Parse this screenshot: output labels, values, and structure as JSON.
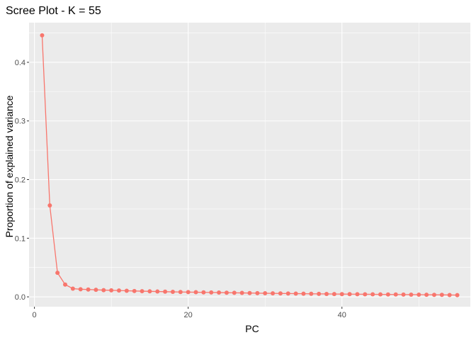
{
  "chart_data": {
    "type": "line",
    "title": "Scree Plot - K = 55",
    "xlabel": "PC",
    "ylabel": "Proportion of explained variance",
    "xlim": [
      -0.7,
      56.7
    ],
    "ylim": [
      -0.0168,
      0.4676
    ],
    "x_ticks": [
      0,
      20,
      40
    ],
    "y_ticks": [
      0.0,
      0.1,
      0.2,
      0.3,
      0.4
    ],
    "x_tick_labels": [
      "0",
      "20",
      "40"
    ],
    "y_tick_labels": [
      "0.0",
      "0.1",
      "0.2",
      "0.3",
      "0.4"
    ],
    "grid": true,
    "legend": "none",
    "series": [
      {
        "color": "#F8766D",
        "x": [
          1,
          2,
          3,
          4,
          5,
          6,
          7,
          8,
          9,
          10,
          11,
          12,
          13,
          14,
          15,
          16,
          17,
          18,
          19,
          20,
          21,
          22,
          23,
          24,
          25,
          26,
          27,
          28,
          29,
          30,
          31,
          32,
          33,
          34,
          35,
          36,
          37,
          38,
          39,
          40,
          41,
          42,
          43,
          44,
          45,
          46,
          47,
          48,
          49,
          50,
          51,
          52,
          53,
          54,
          55
        ],
        "values": [
          0.446,
          0.156,
          0.041,
          0.021,
          0.014,
          0.013,
          0.0125,
          0.012,
          0.0115,
          0.0112,
          0.0108,
          0.0104,
          0.01,
          0.0097,
          0.0094,
          0.0091,
          0.0088,
          0.0085,
          0.0083,
          0.0081,
          0.0079,
          0.0077,
          0.0075,
          0.0073,
          0.0071,
          0.0069,
          0.0067,
          0.0065,
          0.0063,
          0.0061,
          0.006,
          0.0058,
          0.0057,
          0.0055,
          0.0054,
          0.0052,
          0.0051,
          0.005,
          0.0048,
          0.0047,
          0.0046,
          0.0045,
          0.0044,
          0.0043,
          0.0042,
          0.0041,
          0.004,
          0.0039,
          0.0038,
          0.0037,
          0.0036,
          0.0035,
          0.0034,
          0.0032,
          0.003
        ]
      }
    ]
  }
}
